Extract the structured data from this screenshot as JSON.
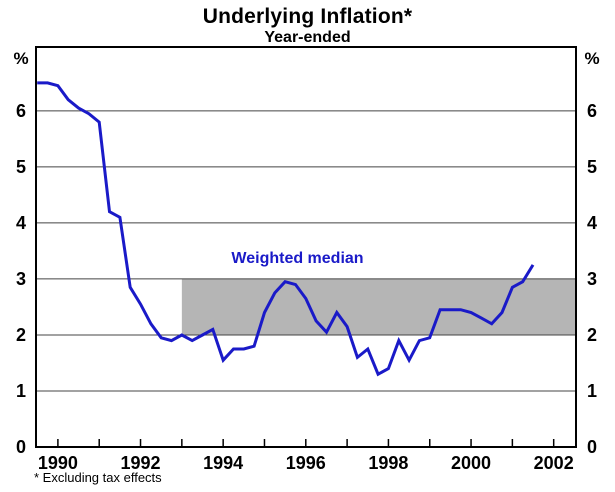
{
  "chart_data": {
    "type": "line",
    "title": "Underlying Inflation*",
    "subtitle": "Year-ended",
    "footnote": "* Excluding tax effects",
    "y_axis": {
      "unit": "%",
      "ticks": [
        0,
        1,
        2,
        3,
        4,
        5,
        6
      ],
      "range": [
        0,
        7.14
      ],
      "gridlines": true,
      "labels_both_sides": true
    },
    "x_axis": {
      "range": [
        1989.47,
        2002.54
      ],
      "tick_years": [
        1990,
        1991,
        1992,
        1993,
        1994,
        1995,
        1996,
        1997,
        1998,
        1999,
        2000,
        2001,
        2002
      ],
      "label_years": [
        1990,
        1992,
        1994,
        1996,
        1998,
        2000,
        2002
      ]
    },
    "target_band": {
      "y_from": 2,
      "y_to": 3,
      "x_from": 1993.0,
      "x_to": 2002.54,
      "color": "#b5b5b5"
    },
    "series": [
      {
        "name": "Weighted median",
        "color": "#1a1ac8",
        "x": [
          1989.5,
          1989.75,
          1990.0,
          1990.25,
          1990.5,
          1990.75,
          1991.0,
          1991.25,
          1991.5,
          1991.75,
          1992.0,
          1992.25,
          1992.5,
          1992.75,
          1993.0,
          1993.25,
          1993.5,
          1993.75,
          1994.0,
          1994.25,
          1994.5,
          1994.75,
          1995.0,
          1995.25,
          1995.5,
          1995.75,
          1996.0,
          1996.25,
          1996.5,
          1996.75,
          1997.0,
          1997.25,
          1997.5,
          1997.75,
          1998.0,
          1998.25,
          1998.5,
          1998.75,
          1999.0,
          1999.25,
          1999.5,
          1999.75,
          2000.0,
          2000.25,
          2000.5,
          2000.75,
          2001.0,
          2001.25,
          2001.5
        ],
        "values": [
          6.5,
          6.5,
          6.45,
          6.2,
          6.05,
          5.95,
          5.8,
          4.2,
          4.1,
          2.85,
          2.55,
          2.2,
          1.95,
          1.9,
          2.0,
          1.9,
          2.0,
          2.1,
          1.55,
          1.75,
          1.75,
          1.8,
          2.4,
          2.75,
          2.95,
          2.9,
          2.65,
          2.25,
          2.05,
          2.4,
          2.15,
          1.6,
          1.75,
          1.3,
          1.4,
          1.9,
          1.55,
          1.9,
          1.95,
          2.45,
          2.45,
          2.45,
          2.4,
          2.3,
          2.2,
          2.4,
          2.85,
          2.95,
          3.25
        ]
      }
    ],
    "colors": {
      "line": "#1a1ac8",
      "band": "#b5b5b5",
      "grid": "#444444",
      "frame": "#000000",
      "background": "#ffffff"
    }
  }
}
